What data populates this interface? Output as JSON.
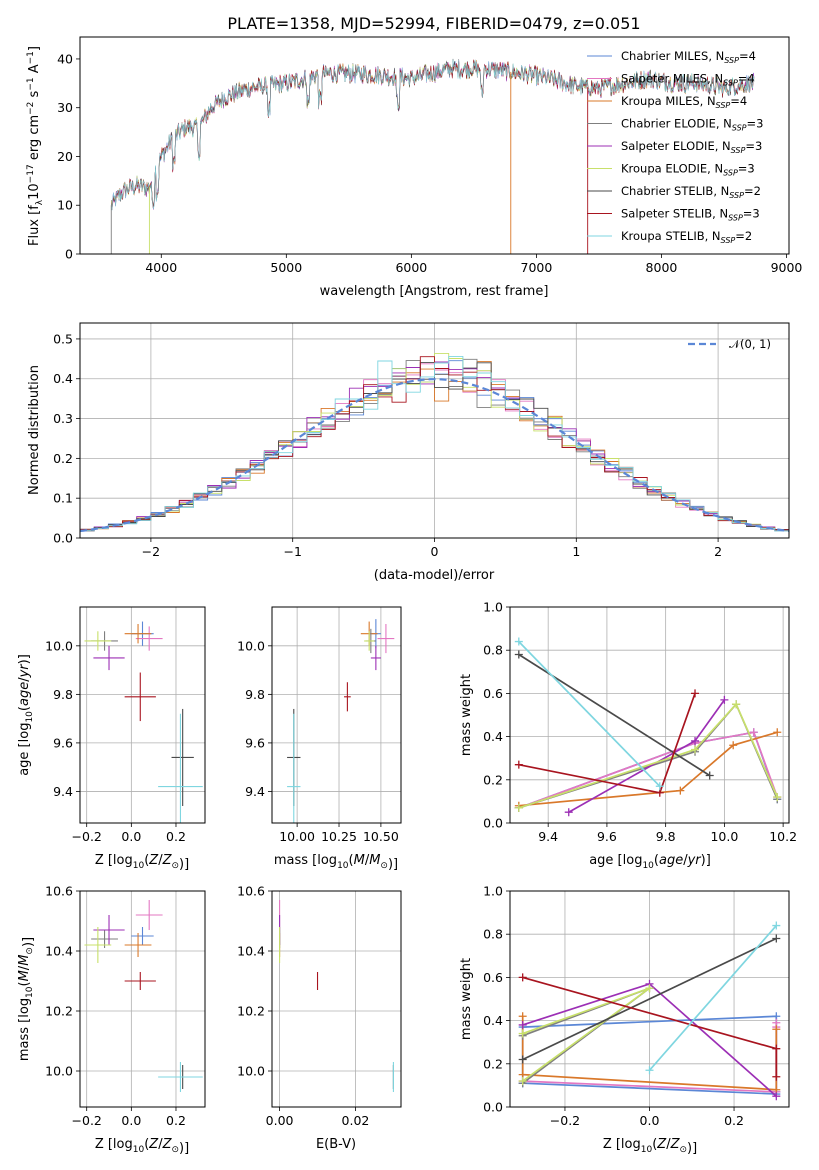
{
  "figure_title": "PLATE=1358, MJD=52994, FIBERID=0479, z=0.051",
  "colors": {
    "Chabrier MILES": "#5b87d6",
    "Salpeter MILES": "#e377c2",
    "Kroupa MILES": "#d9782a",
    "Chabrier ELODIE": "#7f7f7f",
    "Salpeter ELODIE": "#9c2fb5",
    "Kroupa ELODIE": "#c8e06a",
    "Chabrier STELIB": "#4a4a4a",
    "Salpeter STELIB": "#a8141f",
    "Kroupa STELIB": "#7fd6e0"
  },
  "chart_data": [
    {
      "id": "spectrum",
      "type": "line",
      "title": "",
      "xlabel": "wavelength [Angstrom, rest frame]",
      "ylabel": "Flux [f_λ10^-17 erg cm^-2 s^-1 A^-1]",
      "xlim": [
        3350,
        9020
      ],
      "ylim": [
        0,
        44.5
      ],
      "xticks": [
        4000,
        5000,
        6000,
        7000,
        8000,
        9000
      ],
      "yticks": [
        0,
        10,
        20,
        30,
        40
      ],
      "grid": false,
      "legend_position": "right",
      "continuum": {
        "x": [
          3600,
          3700,
          3800,
          3900,
          4000,
          4100,
          4200,
          4300,
          4400,
          4500,
          4700,
          5000,
          5300,
          5600,
          6000,
          6300,
          6600,
          6900,
          7100,
          7300,
          7500,
          7700,
          7900,
          8100,
          8300,
          8500,
          8700
        ],
        "y": [
          10,
          13,
          14,
          13.5,
          20,
          24,
          26,
          26,
          30,
          32,
          34,
          35,
          37,
          37,
          36,
          38,
          38,
          37,
          36,
          34.5,
          34,
          35,
          36,
          35,
          35,
          34,
          35
        ]
      },
      "series": [
        {
          "name": "Chabrier MILES",
          "legend_label": "Chabrier MILES, N",
          "n_ssp": "=4"
        },
        {
          "name": "Salpeter MILES",
          "legend_label": "Salpeter MILES, N",
          "n_ssp": "=4"
        },
        {
          "name": "Kroupa MILES",
          "legend_label": "Kroupa MILES, N",
          "n_ssp": "=4"
        },
        {
          "name": "Chabrier ELODIE",
          "legend_label": "Chabrier ELODIE, N",
          "n_ssp": "=3"
        },
        {
          "name": "Salpeter ELODIE",
          "legend_label": "Salpeter ELODIE, N",
          "n_ssp": "=3"
        },
        {
          "name": "Kroupa ELODIE",
          "legend_label": "Kroupa ELODIE, N",
          "n_ssp": "=3"
        },
        {
          "name": "Chabrier STELIB",
          "legend_label": "Chabrier STELIB, N",
          "n_ssp": "=2"
        },
        {
          "name": "Salpeter STELIB",
          "legend_label": "Salpeter STELIB, N",
          "n_ssp": "=3"
        },
        {
          "name": "Kroupa STELIB",
          "legend_label": "Kroupa STELIB, N",
          "n_ssp": "=2"
        }
      ]
    },
    {
      "id": "residuals",
      "type": "histogram",
      "title": "",
      "xlabel": "(data-model)/error",
      "ylabel": "Normed distribution",
      "xlim": [
        -2.5,
        2.5
      ],
      "ylim": [
        0,
        0.54
      ],
      "xticks": [
        -2,
        -1,
        0,
        1,
        2
      ],
      "yticks": [
        0.0,
        0.1,
        0.2,
        0.3,
        0.4,
        0.5
      ],
      "grid": true,
      "legend_position": "top-right",
      "gaussian_label": "𝒩(0, 1)",
      "bin_width": 0.1
    },
    {
      "id": "age_vs_Z",
      "type": "scatter",
      "xlabel": "Z [log10(Z/Z⊙)]",
      "ylabel": "age [log10(age/yr)]",
      "xlim": [
        -0.23,
        0.33
      ],
      "ylim": [
        9.27,
        10.16
      ],
      "xticks": [
        -0.2,
        0.0,
        0.2
      ],
      "yticks": [
        9.4,
        9.6,
        9.8,
        10.0
      ],
      "grid": true,
      "points": [
        {
          "series": "Chabrier MILES",
          "x": 0.05,
          "y": 10.05,
          "dx": 0.05,
          "dy": 0.05
        },
        {
          "series": "Salpeter MILES",
          "x": 0.08,
          "y": 10.03,
          "dx": 0.06,
          "dy": 0.05
        },
        {
          "series": "Kroupa MILES",
          "x": 0.03,
          "y": 10.05,
          "dx": 0.06,
          "dy": 0.04
        },
        {
          "series": "Chabrier ELODIE",
          "x": -0.12,
          "y": 10.02,
          "dx": 0.06,
          "dy": 0.04
        },
        {
          "series": "Salpeter ELODIE",
          "x": -0.1,
          "y": 9.95,
          "dx": 0.07,
          "dy": 0.05
        },
        {
          "series": "Kroupa ELODIE",
          "x": -0.15,
          "y": 10.02,
          "dx": 0.06,
          "dy": 0.04
        },
        {
          "series": "Chabrier STELIB",
          "x": 0.23,
          "y": 9.54,
          "dx": 0.05,
          "dy": 0.2
        },
        {
          "series": "Salpeter STELIB",
          "x": 0.04,
          "y": 9.79,
          "dx": 0.07,
          "dy": 0.1
        },
        {
          "series": "Kroupa STELIB",
          "x": 0.22,
          "y": 9.42,
          "dx": 0.1,
          "dy": 0.3
        }
      ]
    },
    {
      "id": "age_vs_mass",
      "type": "scatter",
      "xlabel": "mass [log10(M/M⊙)]",
      "ylabel": "",
      "xlim": [
        9.85,
        10.62
      ],
      "ylim": [
        9.27,
        10.16
      ],
      "xticks": [
        10.0,
        10.25,
        10.5
      ],
      "xticklabels": [
        "10.00",
        "10.25",
        "10.50"
      ],
      "yticks": [
        9.4,
        9.6,
        9.8,
        10.0
      ],
      "grid": true,
      "points": [
        {
          "series": "Chabrier MILES",
          "x": 10.47,
          "y": 10.05,
          "dx": 0.03,
          "dy": 0.06
        },
        {
          "series": "Salpeter MILES",
          "x": 10.53,
          "y": 10.03,
          "dx": 0.05,
          "dy": 0.06
        },
        {
          "series": "Kroupa MILES",
          "x": 10.43,
          "y": 10.05,
          "dx": 0.05,
          "dy": 0.05
        },
        {
          "series": "Chabrier ELODIE",
          "x": 10.44,
          "y": 10.02,
          "dx": 0.03,
          "dy": 0.05
        },
        {
          "series": "Salpeter ELODIE",
          "x": 10.47,
          "y": 9.95,
          "dx": 0.03,
          "dy": 0.05
        },
        {
          "series": "Kroupa ELODIE",
          "x": 10.43,
          "y": 10.02,
          "dx": 0.03,
          "dy": 0.04
        },
        {
          "series": "Chabrier STELIB",
          "x": 9.98,
          "y": 9.54,
          "dx": 0.04,
          "dy": 0.2
        },
        {
          "series": "Salpeter STELIB",
          "x": 10.3,
          "y": 9.79,
          "dx": 0.02,
          "dy": 0.06
        },
        {
          "series": "Kroupa STELIB",
          "x": 9.98,
          "y": 9.42,
          "dx": 0.04,
          "dy": 0.3
        }
      ]
    },
    {
      "id": "weight_vs_age",
      "type": "line",
      "xlabel": "age [log10(age/yr)]",
      "ylabel": "mass weight",
      "xlim": [
        9.27,
        10.22
      ],
      "ylim": [
        0.0,
        1.0
      ],
      "xticks": [
        9.4,
        9.6,
        9.8,
        10.0,
        10.2
      ],
      "yticks": [
        0.0,
        0.2,
        0.4,
        0.6,
        0.8,
        1.0
      ],
      "grid": true,
      "series": [
        {
          "name": "Chabrier MILES",
          "x": [
            9.3,
            9.9,
            10.1,
            10.18
          ],
          "y": [
            0.07,
            0.37,
            0.42,
            0.11
          ]
        },
        {
          "name": "Salpeter MILES",
          "x": [
            9.3,
            9.9,
            10.1,
            10.18
          ],
          "y": [
            0.07,
            0.37,
            0.42,
            0.12
          ]
        },
        {
          "name": "Kroupa MILES",
          "x": [
            9.3,
            9.85,
            10.03,
            10.18
          ],
          "y": [
            0.08,
            0.15,
            0.36,
            0.42
          ]
        },
        {
          "name": "Chabrier ELODIE",
          "x": [
            9.3,
            9.9,
            10.04,
            10.18
          ],
          "y": [
            0.07,
            0.33,
            0.55,
            0.11
          ]
        },
        {
          "name": "Salpeter ELODIE",
          "x": [
            9.47,
            9.9,
            10.0
          ],
          "y": [
            0.05,
            0.38,
            0.57
          ]
        },
        {
          "name": "Kroupa ELODIE",
          "x": [
            9.3,
            9.9,
            10.04,
            10.18
          ],
          "y": [
            0.07,
            0.34,
            0.55,
            0.12
          ]
        },
        {
          "name": "Chabrier STELIB",
          "x": [
            9.3,
            9.95
          ],
          "y": [
            0.78,
            0.22
          ]
        },
        {
          "name": "Salpeter STELIB",
          "x": [
            9.3,
            9.78,
            9.9
          ],
          "y": [
            0.27,
            0.14,
            0.6
          ]
        },
        {
          "name": "Kroupa STELIB",
          "x": [
            9.3,
            9.78
          ],
          "y": [
            0.84,
            0.17
          ]
        }
      ]
    },
    {
      "id": "mass_vs_Z",
      "type": "scatter",
      "xlabel": "Z [log10(Z/Z⊙)]",
      "ylabel": "mass [log10(M/M⊙)]",
      "xlim": [
        -0.23,
        0.33
      ],
      "ylim": [
        9.88,
        10.6
      ],
      "xticks": [
        -0.2,
        0.0,
        0.2
      ],
      "yticks": [
        10.0,
        10.2,
        10.4,
        10.6
      ],
      "grid": true,
      "points": [
        {
          "series": "Chabrier MILES",
          "x": 0.05,
          "y": 10.45,
          "dx": 0.05,
          "dy": 0.03
        },
        {
          "series": "Salpeter MILES",
          "x": 0.08,
          "y": 10.52,
          "dx": 0.06,
          "dy": 0.05
        },
        {
          "series": "Kroupa MILES",
          "x": 0.03,
          "y": 10.42,
          "dx": 0.06,
          "dy": 0.04
        },
        {
          "series": "Chabrier ELODIE",
          "x": -0.12,
          "y": 10.44,
          "dx": 0.06,
          "dy": 0.03
        },
        {
          "series": "Salpeter ELODIE",
          "x": -0.1,
          "y": 10.47,
          "dx": 0.07,
          "dy": 0.05
        },
        {
          "series": "Kroupa ELODIE",
          "x": -0.15,
          "y": 10.42,
          "dx": 0.06,
          "dy": 0.06
        },
        {
          "series": "Chabrier STELIB",
          "x": 0.23,
          "y": 9.98,
          "dx": 0.05,
          "dy": 0.04
        },
        {
          "series": "Salpeter STELIB",
          "x": 0.04,
          "y": 10.3,
          "dx": 0.07,
          "dy": 0.03
        },
        {
          "series": "Kroupa STELIB",
          "x": 0.22,
          "y": 9.98,
          "dx": 0.1,
          "dy": 0.05
        }
      ]
    },
    {
      "id": "mass_vs_ebv",
      "type": "scatter",
      "xlabel": "E(B-V)",
      "ylabel": "",
      "xlim": [
        -0.002,
        0.032
      ],
      "ylim": [
        9.88,
        10.6
      ],
      "xticks": [
        0.0,
        0.02
      ],
      "xticklabels": [
        "0.00",
        "0.02"
      ],
      "yticks": [
        10.0,
        10.2,
        10.4,
        10.6
      ],
      "grid": true,
      "points": [
        {
          "series": "Chabrier MILES",
          "x": 0.0,
          "y": 10.45,
          "dx": 0,
          "dy": 0.03
        },
        {
          "series": "Salpeter MILES",
          "x": 0.0,
          "y": 10.52,
          "dx": 0,
          "dy": 0.05
        },
        {
          "series": "Kroupa MILES",
          "x": 0.0,
          "y": 10.42,
          "dx": 0,
          "dy": 0.04
        },
        {
          "series": "Chabrier ELODIE",
          "x": 0.0,
          "y": 10.44,
          "dx": 0,
          "dy": 0.03
        },
        {
          "series": "Salpeter ELODIE",
          "x": 0.0,
          "y": 10.47,
          "dx": 0,
          "dy": 0.05
        },
        {
          "series": "Kroupa ELODIE",
          "x": 0.0,
          "y": 10.42,
          "dx": 0,
          "dy": 0.06
        },
        {
          "series": "Chabrier STELIB",
          "x": 0.03,
          "y": 9.98,
          "dx": 0,
          "dy": 0.04
        },
        {
          "series": "Salpeter STELIB",
          "x": 0.01,
          "y": 10.3,
          "dx": 0,
          "dy": 0.03
        },
        {
          "series": "Kroupa STELIB",
          "x": 0.03,
          "y": 9.98,
          "dx": 0,
          "dy": 0.05
        }
      ]
    },
    {
      "id": "weight_vs_Z",
      "type": "line",
      "xlabel": "Z [log10(Z/Z⊙)]",
      "ylabel": "mass weight",
      "xlim": [
        -0.33,
        0.33
      ],
      "ylim": [
        0.0,
        1.0
      ],
      "xticks": [
        -0.2,
        0.0,
        0.2
      ],
      "yticks": [
        0.0,
        0.2,
        0.4,
        0.6,
        0.8,
        1.0
      ],
      "grid": true,
      "series": [
        {
          "name": "Chabrier MILES",
          "x": [
            -0.3,
            0.3,
            0.3,
            0.3,
            -0.3,
            -0.3
          ],
          "y": [
            0.11,
            0.06,
            0.07,
            0.42,
            0.37,
            0.11
          ]
        },
        {
          "name": "Salpeter MILES",
          "x": [
            -0.3,
            0.3,
            0.3,
            0.3
          ],
          "y": [
            0.12,
            0.07,
            0.37,
            0.39
          ]
        },
        {
          "name": "Kroupa MILES",
          "x": [
            -0.3,
            -0.3,
            0.3,
            0.3
          ],
          "y": [
            0.42,
            0.15,
            0.08,
            0.36
          ]
        },
        {
          "name": "Chabrier ELODIE",
          "x": [
            -0.3,
            0.0,
            -0.3
          ],
          "y": [
            0.11,
            0.55,
            0.33
          ]
        },
        {
          "name": "Salpeter ELODIE",
          "x": [
            -0.3,
            0.0,
            0.3
          ],
          "y": [
            0.38,
            0.57,
            0.05
          ]
        },
        {
          "name": "Kroupa ELODIE",
          "x": [
            -0.3,
            0.0,
            -0.3
          ],
          "y": [
            0.12,
            0.55,
            0.34
          ]
        },
        {
          "name": "Chabrier STELIB",
          "x": [
            -0.3,
            0.3
          ],
          "y": [
            0.22,
            0.78
          ]
        },
        {
          "name": "Salpeter STELIB",
          "x": [
            -0.3,
            0.3,
            0.3
          ],
          "y": [
            0.6,
            0.27,
            0.14
          ]
        },
        {
          "name": "Kroupa STELIB",
          "x": [
            0.0,
            0.3
          ],
          "y": [
            0.17,
            0.84
          ]
        }
      ]
    }
  ]
}
